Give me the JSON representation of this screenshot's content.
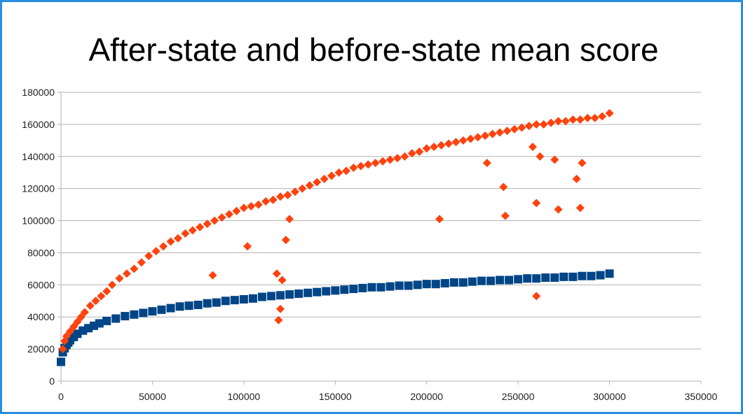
{
  "chart_data": {
    "type": "scatter",
    "title": "After-state and before-state mean score",
    "xlabel": "",
    "ylabel": "",
    "xlim": [
      0,
      350000
    ],
    "ylim": [
      0,
      180000
    ],
    "x_ticks": [
      "0",
      "50000",
      "100000",
      "150000",
      "200000",
      "250000",
      "300000",
      "350000"
    ],
    "y_ticks": [
      "0",
      "20000",
      "40000",
      "60000",
      "80000",
      "100000",
      "120000",
      "140000",
      "160000",
      "180000"
    ],
    "grid": "horizontal",
    "legend": "none",
    "series": [
      {
        "color": "#004586",
        "marker": "square",
        "x": [
          0,
          1000,
          2000,
          3000,
          4000,
          5000,
          7000,
          9000,
          12000,
          15000,
          18000,
          21000,
          25000,
          30000,
          35000,
          40000,
          45000,
          50000,
          55000,
          60000,
          65000,
          70000,
          75000,
          80000,
          85000,
          90000,
          95000,
          100000,
          105000,
          110000,
          115000,
          120000,
          125000,
          130000,
          135000,
          140000,
          145000,
          150000,
          155000,
          160000,
          165000,
          170000,
          175000,
          180000,
          185000,
          190000,
          195000,
          200000,
          205000,
          210000,
          215000,
          220000,
          225000,
          230000,
          235000,
          240000,
          245000,
          250000,
          255000,
          260000,
          265000,
          270000,
          275000,
          280000,
          285000,
          290000,
          295000,
          300000
        ],
        "y": [
          12000,
          18000,
          20500,
          22500,
          24000,
          25500,
          27500,
          29500,
          31500,
          33000,
          34500,
          36000,
          37500,
          39000,
          40500,
          41500,
          42500,
          43500,
          44500,
          45500,
          46500,
          47000,
          47500,
          48500,
          49000,
          50000,
          50500,
          51000,
          51500,
          52500,
          53000,
          53500,
          54000,
          54500,
          55000,
          55500,
          56000,
          56500,
          57000,
          57500,
          58000,
          58500,
          58500,
          59000,
          59500,
          59500,
          60000,
          60500,
          60500,
          61000,
          61500,
          61500,
          62000,
          62500,
          62500,
          63000,
          63000,
          63500,
          64000,
          64000,
          64500,
          64500,
          65000,
          65000,
          65500,
          65500,
          66000,
          67000
        ]
      },
      {
        "color": "#ff420e",
        "marker": "diamond",
        "x": [
          1000,
          2000,
          3000,
          5000,
          7000,
          9000,
          11000,
          13000,
          16000,
          19000,
          22000,
          25000,
          28000,
          32000,
          36000,
          40000,
          44000,
          48000,
          52000,
          56000,
          60000,
          64000,
          68000,
          72000,
          76000,
          80000,
          84000,
          88000,
          92000,
          96000,
          100000,
          104000,
          108000,
          112000,
          116000,
          120000,
          124000,
          128000,
          132000,
          136000,
          140000,
          144000,
          148000,
          152000,
          156000,
          160000,
          164000,
          168000,
          172000,
          176000,
          180000,
          184000,
          188000,
          192000,
          196000,
          200000,
          204000,
          208000,
          212000,
          216000,
          220000,
          224000,
          228000,
          232000,
          236000,
          240000,
          244000,
          248000,
          252000,
          256000,
          260000,
          264000,
          268000,
          272000,
          276000,
          280000,
          284000,
          288000,
          292000,
          296000,
          300000,
          83000,
          102000,
          118000,
          121000,
          119000,
          120000,
          123000,
          125000,
          207000,
          233000,
          242000,
          243000,
          258000,
          260000,
          262000,
          270000,
          272000,
          282000,
          284000,
          285000,
          260000
        ],
        "y": [
          20000,
          25000,
          28000,
          31000,
          34000,
          37000,
          40000,
          43000,
          47000,
          50000,
          53000,
          56000,
          60000,
          64000,
          67000,
          70000,
          74000,
          78000,
          81000,
          84000,
          87000,
          89000,
          92000,
          94000,
          96000,
          98000,
          100000,
          102000,
          104000,
          106000,
          108000,
          109000,
          110000,
          112000,
          113000,
          115000,
          116000,
          118000,
          120000,
          122000,
          124000,
          126000,
          128000,
          130000,
          131000,
          133000,
          134000,
          135000,
          136000,
          137000,
          138000,
          139000,
          140000,
          142000,
          143000,
          145000,
          146000,
          147000,
          148000,
          149000,
          150000,
          151000,
          152000,
          153000,
          154000,
          155000,
          156000,
          157000,
          158000,
          159000,
          160000,
          160000,
          161000,
          162000,
          162000,
          163000,
          163000,
          164000,
          164000,
          165000,
          167000,
          66000,
          84000,
          67000,
          63000,
          38000,
          45000,
          88000,
          101000,
          101000,
          136000,
          121000,
          103000,
          146000,
          111000,
          140000,
          138000,
          107000,
          126000,
          108000,
          136000,
          53000
        ]
      }
    ]
  }
}
